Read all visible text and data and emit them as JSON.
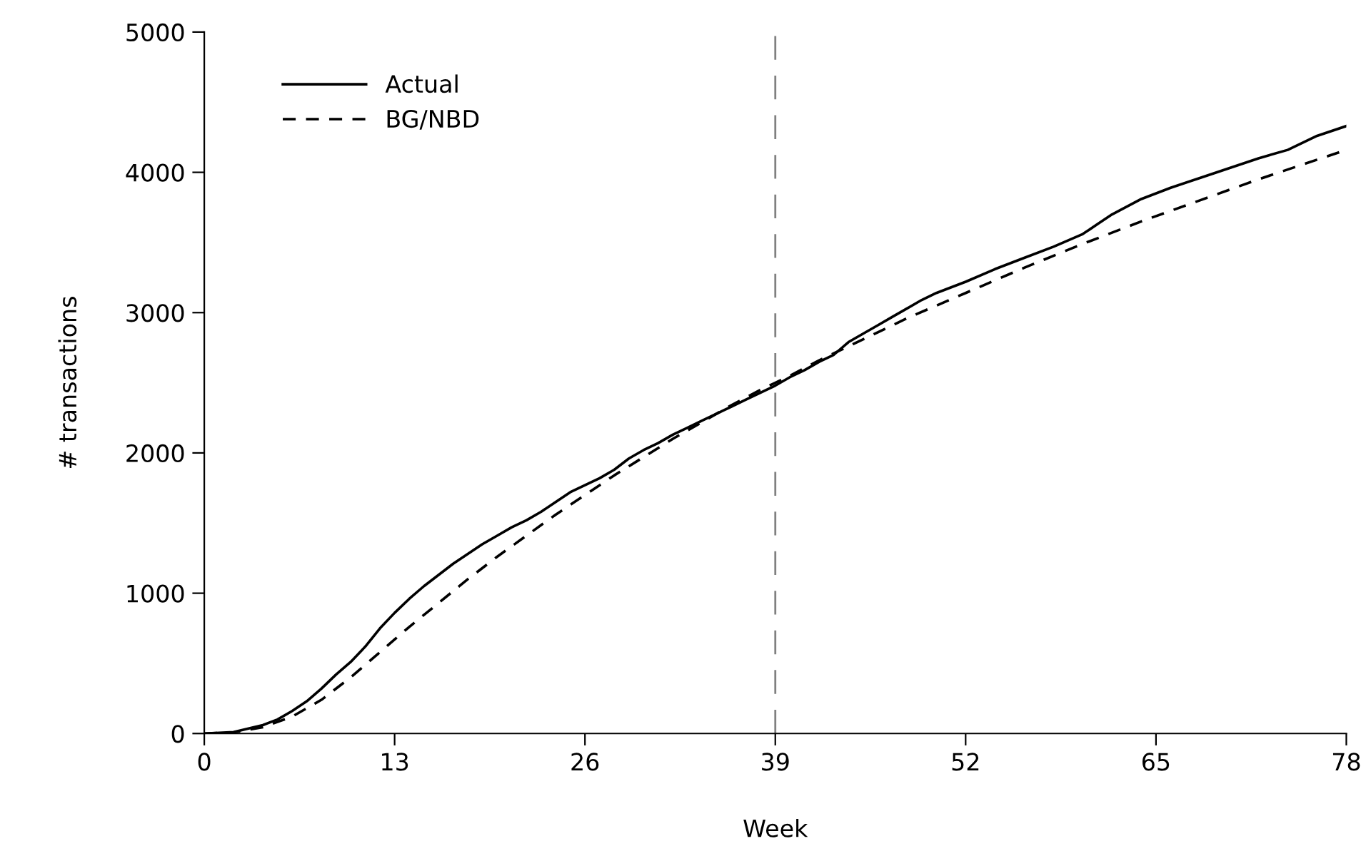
{
  "chart_data": {
    "type": "line",
    "xlabel": "Week",
    "ylabel": "# transactions",
    "xlim": [
      0,
      78
    ],
    "xticks": [
      0,
      13,
      26,
      39,
      52,
      65,
      78
    ],
    "ylim": [
      0,
      5000
    ],
    "yticks": [
      0,
      1000,
      2000,
      3000,
      4000,
      5000
    ],
    "grid": false,
    "legend": "top left",
    "marker": "none",
    "ref_lines": [
      {
        "axis": "x",
        "value": 39,
        "label": null,
        "color": "#808080",
        "line_style": "dashed"
      }
    ],
    "series": [
      {
        "name": "Actual",
        "color": "#000000",
        "line_style": "solid",
        "x": [
          0,
          2,
          4,
          5,
          6,
          7,
          8,
          9,
          10,
          11,
          12,
          13,
          14,
          15,
          16,
          17,
          18,
          19,
          20,
          21,
          22,
          23,
          24,
          25,
          26,
          27,
          28,
          29,
          30,
          31,
          32,
          33,
          34,
          35,
          36,
          37,
          38,
          39,
          40,
          41,
          42,
          43,
          44,
          45,
          46,
          47,
          48,
          49,
          50,
          52,
          54,
          56,
          58,
          60,
          61,
          62,
          64,
          66,
          68,
          70,
          72,
          74,
          76,
          78
        ],
        "values": [
          0,
          10,
          60,
          100,
          160,
          230,
          320,
          420,
          510,
          620,
          750,
          860,
          960,
          1050,
          1130,
          1210,
          1280,
          1350,
          1410,
          1470,
          1520,
          1580,
          1650,
          1720,
          1770,
          1820,
          1880,
          1960,
          2020,
          2070,
          2130,
          2180,
          2230,
          2280,
          2330,
          2380,
          2430,
          2480,
          2540,
          2590,
          2650,
          2700,
          2790,
          2850,
          2910,
          2970,
          3030,
          3090,
          3140,
          3220,
          3310,
          3390,
          3470,
          3560,
          3630,
          3700,
          3810,
          3890,
          3960,
          4030,
          4100,
          4160,
          4260,
          4330
        ]
      },
      {
        "name": "BG/NBD",
        "color": "#000000",
        "line_style": "dashed",
        "x": [
          0,
          2,
          4,
          6,
          8,
          10,
          12,
          13,
          14,
          16,
          18,
          20,
          22,
          24,
          26,
          28,
          30,
          32,
          34,
          36,
          38,
          39,
          40,
          42,
          44,
          46,
          48,
          50,
          52,
          56,
          60,
          64,
          68,
          72,
          76,
          78
        ],
        "values": [
          0,
          8,
          45,
          120,
          240,
          400,
          580,
          670,
          760,
          930,
          1100,
          1260,
          1410,
          1560,
          1700,
          1840,
          1970,
          2100,
          2220,
          2340,
          2450,
          2500,
          2550,
          2660,
          2760,
          2860,
          2960,
          3050,
          3140,
          3320,
          3490,
          3650,
          3800,
          3950,
          4090,
          4160
        ]
      }
    ]
  }
}
